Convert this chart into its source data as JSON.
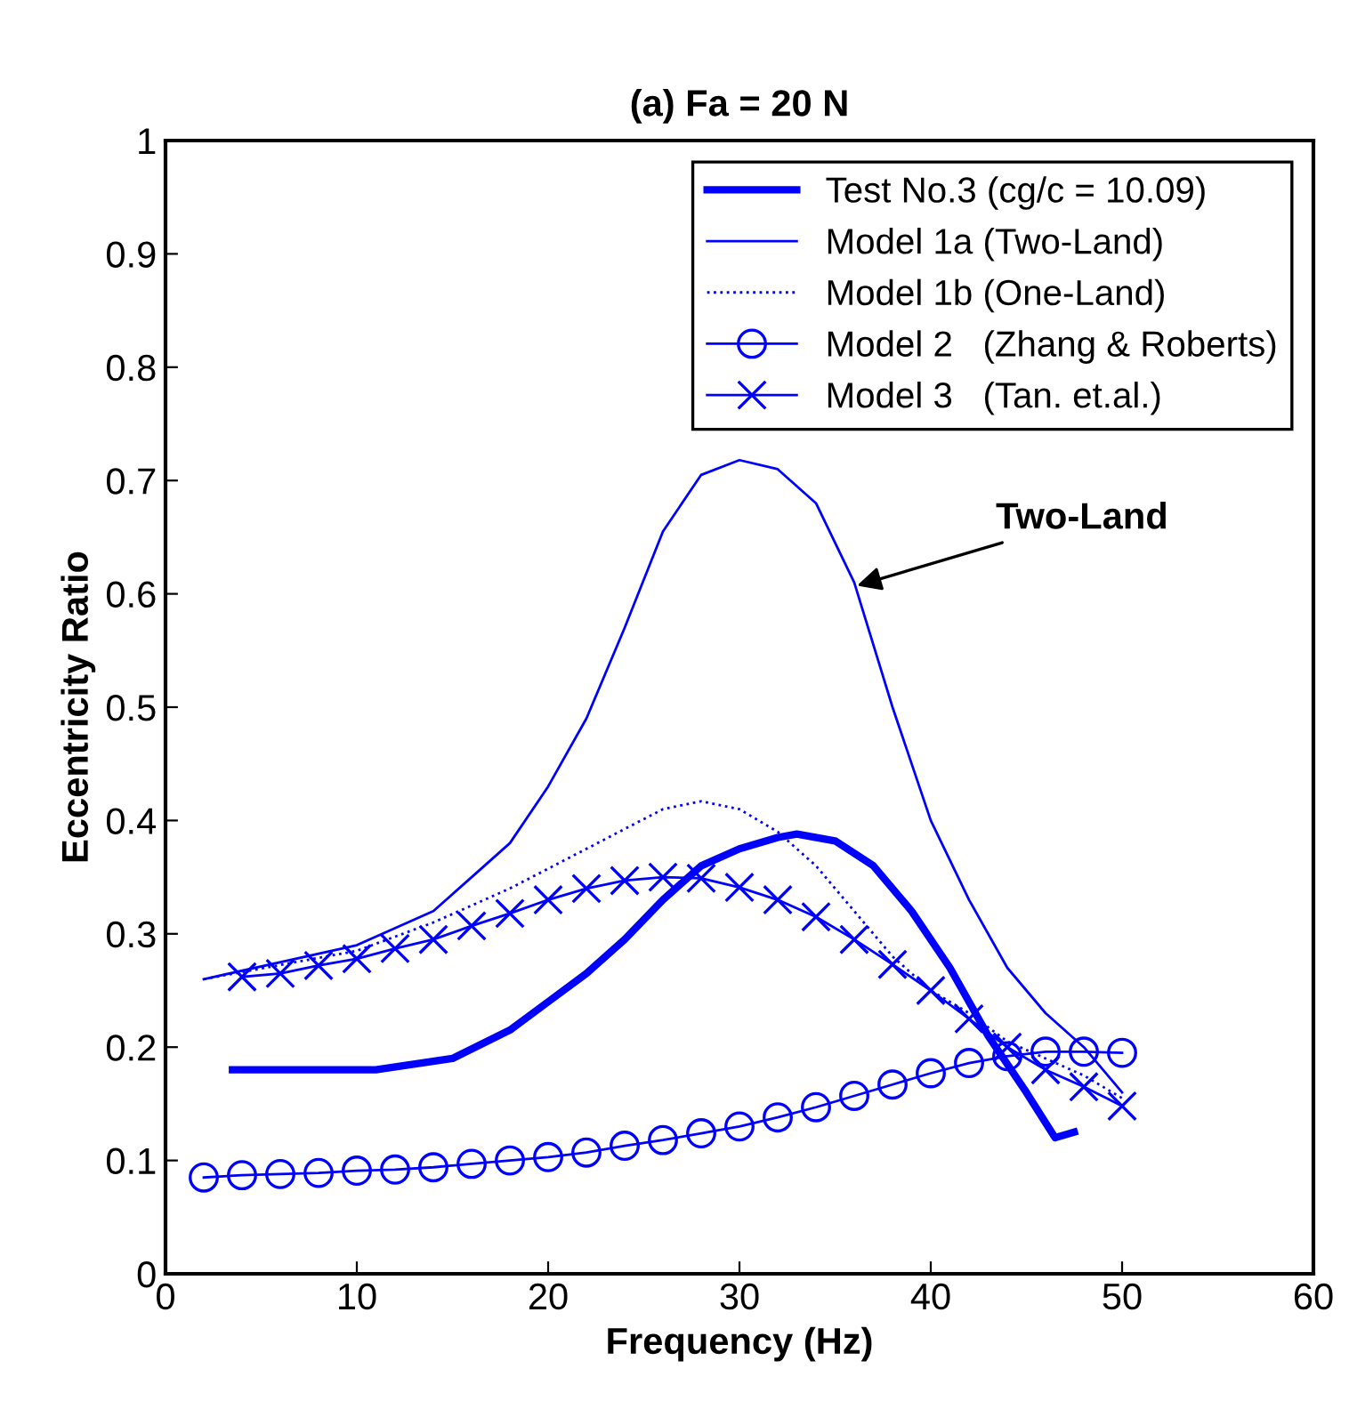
{
  "chart_data": {
    "type": "line",
    "title": "(a) Fa = 20 N",
    "xlabel": "Frequency (Hz)",
    "ylabel": "Eccentricity Ratio",
    "xlim": [
      0,
      60
    ],
    "xticks": [
      0,
      10,
      20,
      30,
      40,
      50,
      60
    ],
    "ylim": [
      0,
      1
    ],
    "yticks": [
      0,
      0.1,
      0.2,
      0.3,
      0.4,
      0.5,
      0.6,
      0.7,
      0.8,
      0.9,
      1
    ],
    "grid": false,
    "legend": "top right",
    "annotations": [
      {
        "text": "Two-Land",
        "x": 35.9,
        "y": 0.606
      }
    ],
    "series": [
      {
        "name": "Test No.3 (cg/c = 10.09)",
        "color": "#0000ff",
        "line_style": "solid",
        "marker": "none",
        "x": [
          3.5,
          11,
          15,
          18,
          20,
          22,
          24,
          26,
          28,
          30,
          32,
          33,
          35,
          37,
          39,
          41,
          43,
          45,
          46.5,
          47.5
        ],
        "values": [
          0.18,
          0.18,
          0.19,
          0.215,
          0.24,
          0.265,
          0.295,
          0.33,
          0.36,
          0.375,
          0.385,
          0.388,
          0.382,
          0.36,
          0.32,
          0.27,
          0.21,
          0.16,
          0.12,
          0.125
        ]
      },
      {
        "name": "Model 1a (Two-Land)",
        "color": "#0000ff",
        "line_style": "solid",
        "marker": "none",
        "x": [
          2,
          10,
          14,
          16,
          18,
          20,
          22,
          24,
          26,
          28,
          30,
          32,
          34,
          36,
          38,
          40,
          42,
          44,
          46,
          48,
          50
        ],
        "values": [
          0.26,
          0.29,
          0.32,
          0.35,
          0.38,
          0.43,
          0.49,
          0.57,
          0.655,
          0.705,
          0.718,
          0.71,
          0.68,
          0.61,
          0.5,
          0.4,
          0.33,
          0.27,
          0.23,
          0.2,
          0.16
        ]
      },
      {
        "name": "Model 1b (One-Land)",
        "color": "#0000ff",
        "line_style": "dotted",
        "marker": "none",
        "x": [
          2,
          10,
          14,
          18,
          22,
          26,
          28,
          30,
          32,
          34,
          36,
          38,
          40,
          42,
          44,
          46,
          48,
          50
        ],
        "values": [
          0.26,
          0.285,
          0.31,
          0.34,
          0.375,
          0.41,
          0.417,
          0.41,
          0.39,
          0.36,
          0.32,
          0.28,
          0.25,
          0.23,
          0.205,
          0.19,
          0.175,
          0.155
        ]
      },
      {
        "name": "Model 2   (Zhang & Roberts)",
        "color": "#0000ff",
        "line_style": "solid",
        "marker": "circle",
        "x": [
          2,
          4,
          6,
          8,
          10,
          12,
          14,
          16,
          18,
          20,
          22,
          24,
          26,
          28,
          30,
          32,
          34,
          36,
          38,
          40,
          42,
          44,
          46,
          48,
          50
        ],
        "values": [
          0.085,
          0.087,
          0.088,
          0.089,
          0.091,
          0.092,
          0.094,
          0.097,
          0.1,
          0.103,
          0.107,
          0.113,
          0.118,
          0.124,
          0.13,
          0.138,
          0.147,
          0.157,
          0.167,
          0.177,
          0.186,
          0.192,
          0.196,
          0.196,
          0.195
        ]
      },
      {
        "name": "Model 3   (Tan. et.al.)",
        "color": "#0000ff",
        "line_style": "solid",
        "marker": "cross",
        "x": [
          4,
          6,
          8,
          10,
          12,
          14,
          16,
          18,
          20,
          22,
          24,
          26,
          28,
          30,
          32,
          34,
          36,
          38,
          40,
          42,
          44,
          46,
          48,
          50
        ],
        "values": [
          0.262,
          0.265,
          0.272,
          0.278,
          0.287,
          0.295,
          0.307,
          0.318,
          0.33,
          0.34,
          0.347,
          0.35,
          0.349,
          0.341,
          0.33,
          0.315,
          0.295,
          0.273,
          0.25,
          0.225,
          0.2,
          0.18,
          0.165,
          0.148
        ]
      }
    ]
  }
}
